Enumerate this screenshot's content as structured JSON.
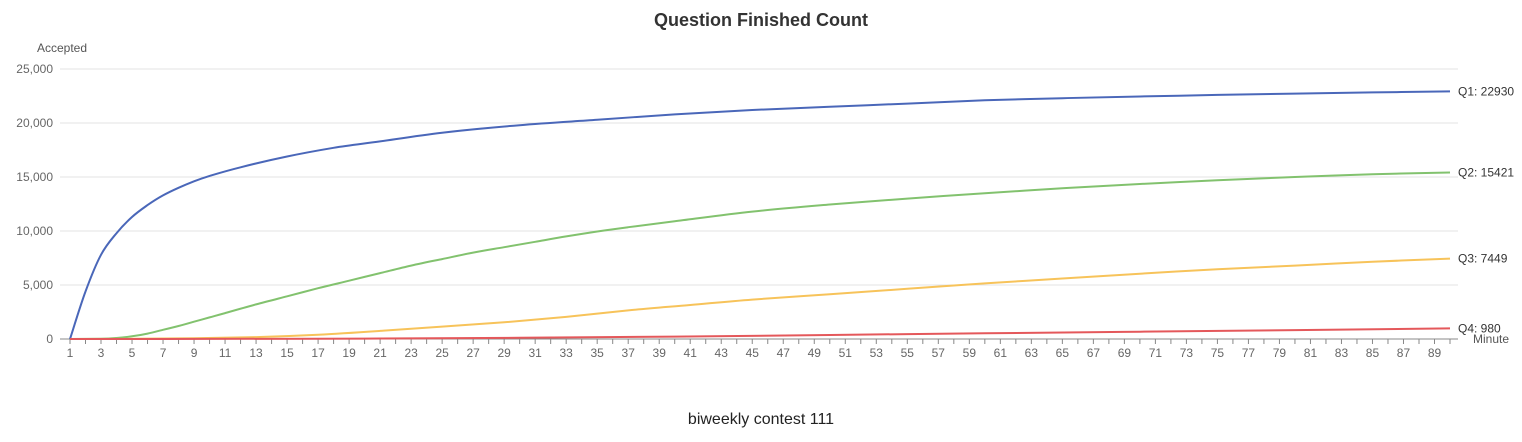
{
  "chart_data": {
    "type": "line",
    "title": "Question Finished Count",
    "subtitle": "biweekly contest 111",
    "ylabel": "Accepted",
    "xlabel": "Minute",
    "xlim": [
      1,
      90
    ],
    "ylim": [
      0,
      25000
    ],
    "yticks": [
      {
        "value": 0,
        "label": "0"
      },
      {
        "value": 5000,
        "label": "5,000"
      },
      {
        "value": 10000,
        "label": "10,000"
      },
      {
        "value": 15000,
        "label": "15,000"
      },
      {
        "value": 20000,
        "label": "20,000"
      },
      {
        "value": 25000,
        "label": "25,000"
      }
    ],
    "xticks": [
      1,
      3,
      5,
      7,
      9,
      11,
      13,
      15,
      17,
      19,
      21,
      23,
      25,
      27,
      29,
      31,
      33,
      35,
      37,
      39,
      41,
      43,
      45,
      47,
      49,
      51,
      53,
      55,
      57,
      59,
      61,
      63,
      65,
      67,
      69,
      71,
      73,
      75,
      77,
      79,
      81,
      83,
      85,
      87,
      89
    ],
    "grid": true,
    "legend": "end-labels",
    "series": [
      {
        "name": "Q1",
        "end_label": "Q1: 22930",
        "color": "#4a67b9",
        "points": [
          [
            1,
            0
          ],
          [
            2,
            4400
          ],
          [
            3,
            7800
          ],
          [
            4,
            9800
          ],
          [
            5,
            11300
          ],
          [
            6,
            12400
          ],
          [
            7,
            13300
          ],
          [
            8,
            14000
          ],
          [
            9,
            14600
          ],
          [
            10,
            15100
          ],
          [
            12,
            15900
          ],
          [
            15,
            16900
          ],
          [
            18,
            17700
          ],
          [
            21,
            18300
          ],
          [
            25,
            19100
          ],
          [
            30,
            19800
          ],
          [
            35,
            20300
          ],
          [
            40,
            20800
          ],
          [
            45,
            21200
          ],
          [
            50,
            21500
          ],
          [
            55,
            21800
          ],
          [
            60,
            22100
          ],
          [
            65,
            22300
          ],
          [
            70,
            22450
          ],
          [
            75,
            22600
          ],
          [
            80,
            22720
          ],
          [
            85,
            22830
          ],
          [
            90,
            22930
          ]
        ]
      },
      {
        "name": "Q2",
        "end_label": "Q2: 15421",
        "color": "#82c26e",
        "points": [
          [
            1,
            0
          ],
          [
            3,
            20
          ],
          [
            4,
            90
          ],
          [
            5,
            250
          ],
          [
            6,
            500
          ],
          [
            7,
            850
          ],
          [
            8,
            1200
          ],
          [
            9,
            1600
          ],
          [
            10,
            2000
          ],
          [
            11,
            2400
          ],
          [
            13,
            3200
          ],
          [
            15,
            3950
          ],
          [
            17,
            4700
          ],
          [
            19,
            5400
          ],
          [
            21,
            6100
          ],
          [
            23,
            6800
          ],
          [
            25,
            7400
          ],
          [
            27,
            8000
          ],
          [
            29,
            8500
          ],
          [
            31,
            9000
          ],
          [
            33,
            9500
          ],
          [
            35,
            9950
          ],
          [
            37,
            10350
          ],
          [
            40,
            10900
          ],
          [
            45,
            11800
          ],
          [
            50,
            12450
          ],
          [
            55,
            13000
          ],
          [
            60,
            13500
          ],
          [
            65,
            13950
          ],
          [
            70,
            14350
          ],
          [
            75,
            14700
          ],
          [
            80,
            15000
          ],
          [
            85,
            15250
          ],
          [
            90,
            15421
          ]
        ]
      },
      {
        "name": "Q3",
        "end_label": "Q3: 7449",
        "color": "#f7c35a",
        "points": [
          [
            1,
            0
          ],
          [
            5,
            20
          ],
          [
            9,
            70
          ],
          [
            13,
            180
          ],
          [
            17,
            400
          ],
          [
            21,
            750
          ],
          [
            25,
            1150
          ],
          [
            29,
            1550
          ],
          [
            33,
            2050
          ],
          [
            37,
            2650
          ],
          [
            41,
            3150
          ],
          [
            45,
            3650
          ],
          [
            50,
            4150
          ],
          [
            55,
            4650
          ],
          [
            60,
            5150
          ],
          [
            65,
            5600
          ],
          [
            70,
            6050
          ],
          [
            75,
            6450
          ],
          [
            80,
            6800
          ],
          [
            85,
            7150
          ],
          [
            90,
            7449
          ]
        ]
      },
      {
        "name": "Q4",
        "end_label": "Q4: 980",
        "color": "#e4585b",
        "points": [
          [
            1,
            0
          ],
          [
            10,
            10
          ],
          [
            20,
            40
          ],
          [
            30,
            110
          ],
          [
            40,
            220
          ],
          [
            50,
            370
          ],
          [
            60,
            530
          ],
          [
            70,
            680
          ],
          [
            80,
            820
          ],
          [
            90,
            980
          ]
        ]
      }
    ]
  }
}
